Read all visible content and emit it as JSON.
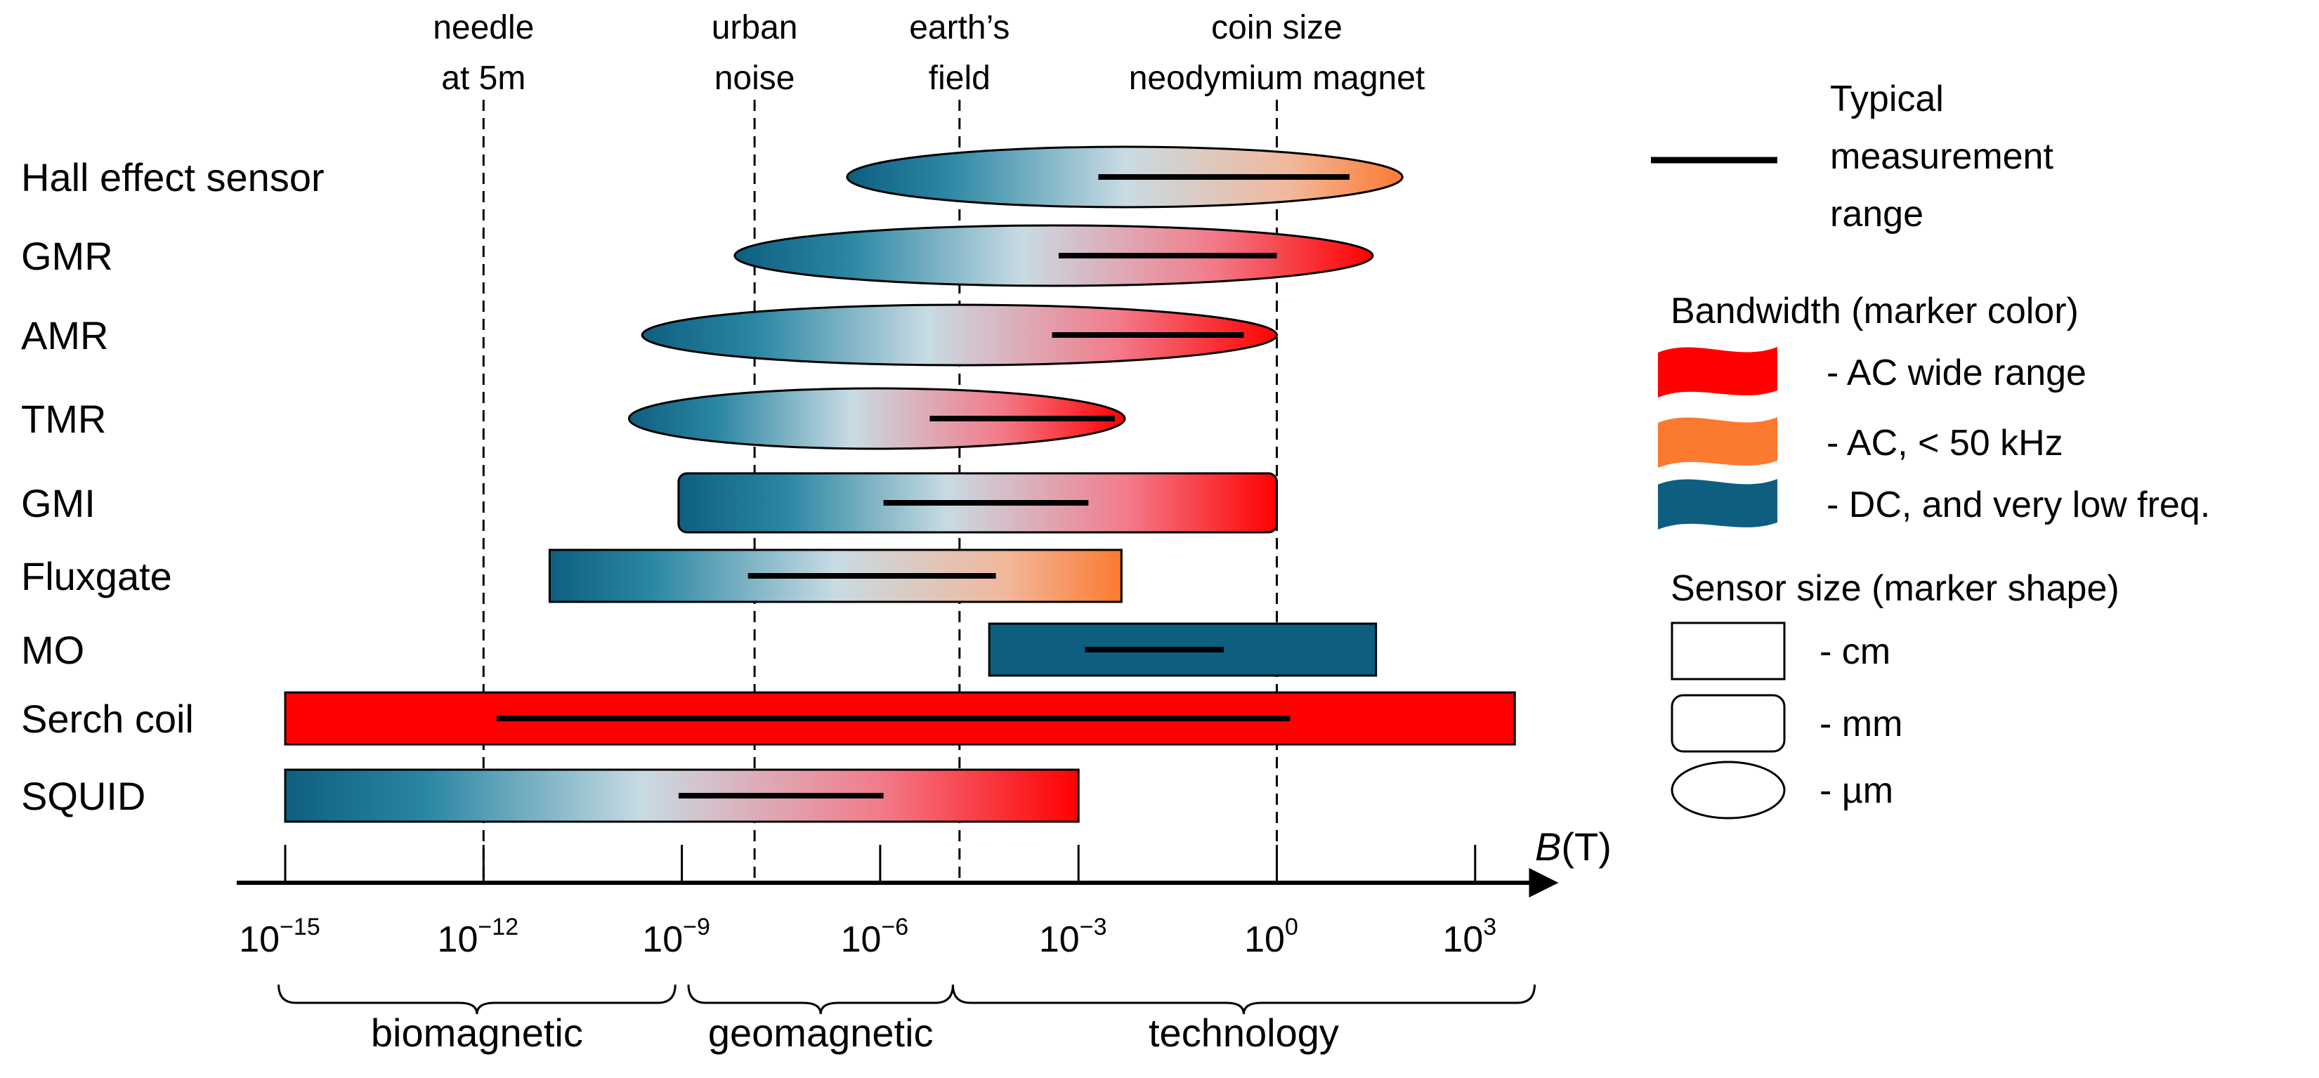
{
  "chart_data": {
    "type": "range-diagram",
    "title": "",
    "xlabel": {
      "symbol": "B",
      "unit": "(T)"
    },
    "x_scale": "log10",
    "xlim_exponent": [
      -16,
      5
    ],
    "ticks": [
      {
        "base": "10",
        "exp": "−15",
        "value": -15
      },
      {
        "base": "10",
        "exp": "−12",
        "value": -12
      },
      {
        "base": "10",
        "exp": "−9",
        "value": -9
      },
      {
        "base": "10",
        "exp": "−6",
        "value": -6
      },
      {
        "base": "10",
        "exp": "−3",
        "value": -3
      },
      {
        "base": "10",
        "exp": "0",
        "value": 0
      },
      {
        "base": "10",
        "exp": "3",
        "value": 3
      }
    ],
    "reference_lines": [
      {
        "lines": [
          "needle",
          "at 5m"
        ],
        "value": -12
      },
      {
        "lines": [
          "urban",
          "noise"
        ],
        "value": -7.9
      },
      {
        "lines": [
          "earth’s",
          "field"
        ],
        "value": -4.8
      },
      {
        "lines": [
          "coin size",
          "neodymium magnet"
        ],
        "value": 0
      }
    ],
    "regions": [
      {
        "label": "biomagnetic",
        "from": -15.1,
        "to": -9.1
      },
      {
        "label": "geomagnetic",
        "from": -8.9,
        "to": -4.9
      },
      {
        "label": "technology",
        "from": -4.9,
        "to": 3.9
      }
    ],
    "sensors": [
      {
        "name": "Hall effect sensor",
        "shape": "ellipse",
        "bandwidth": "AC, < 50 kHz",
        "range": [
          -6.5,
          1.9
        ],
        "typical": [
          -2.7,
          1.1
        ]
      },
      {
        "name": "GMR",
        "shape": "ellipse",
        "bandwidth": "AC wide range",
        "range": [
          -8.2,
          1.45
        ],
        "typical": [
          -3.3,
          0
        ]
      },
      {
        "name": "AMR",
        "shape": "ellipse",
        "bandwidth": "AC wide range",
        "range": [
          -9.6,
          0
        ],
        "typical": [
          -3.4,
          -0.5
        ]
      },
      {
        "name": "TMR",
        "shape": "ellipse",
        "bandwidth": "AC wide range",
        "range": [
          -9.8,
          -2.3
        ],
        "typical": [
          -5.25,
          -2.45
        ]
      },
      {
        "name": "GMI",
        "shape": "rounded-rect",
        "bandwidth": "AC wide range",
        "range": [
          -9.05,
          0
        ],
        "typical": [
          -5.95,
          -2.85
        ]
      },
      {
        "name": "Fluxgate",
        "shape": "rect",
        "bandwidth": "AC, < 50 kHz",
        "range": [
          -11.0,
          -2.35
        ],
        "typical": [
          -8.0,
          -4.25
        ]
      },
      {
        "name": "MO",
        "shape": "rect",
        "bandwidth": "DC, and very low freq.",
        "range": [
          -4.35,
          1.5
        ],
        "typical": [
          -2.9,
          -0.8
        ]
      },
      {
        "name": "Serch coil",
        "shape": "rect",
        "bandwidth": "AC wide range",
        "range": [
          -15.0,
          3.6
        ],
        "typical": [
          -11.8,
          0.2
        ]
      },
      {
        "name": "SQUID",
        "shape": "rect",
        "bandwidth": "AC wide range",
        "range": [
          -15.0,
          -3.0
        ],
        "typical": [
          -9.05,
          -5.95
        ]
      }
    ],
    "legend": {
      "typical_label": [
        "Typical",
        "measurement",
        "range"
      ],
      "bandwidth_title": "Bandwidth (marker color)",
      "bandwidth_items": [
        {
          "label": "- AC wide range",
          "color": "#ff0000"
        },
        {
          "label": "- AC, < 50 kHz",
          "color": "#fb7a30"
        },
        {
          "label": "- DC, and very low freq.",
          "color": "#0e5e80"
        }
      ],
      "size_title": "Sensor size (marker shape)",
      "size_items": [
        {
          "label": "- cm",
          "shape": "rect"
        },
        {
          "label": "- mm",
          "shape": "rounded-rect"
        },
        {
          "label": "- µm",
          "shape": "ellipse"
        }
      ]
    },
    "colors": {
      "dc": "#0e5e80",
      "dc_mid": "#2b87a3",
      "light": "#c8dbe3",
      "ac_wide": "#ff0000",
      "ac_low": "#fb7a30"
    }
  }
}
